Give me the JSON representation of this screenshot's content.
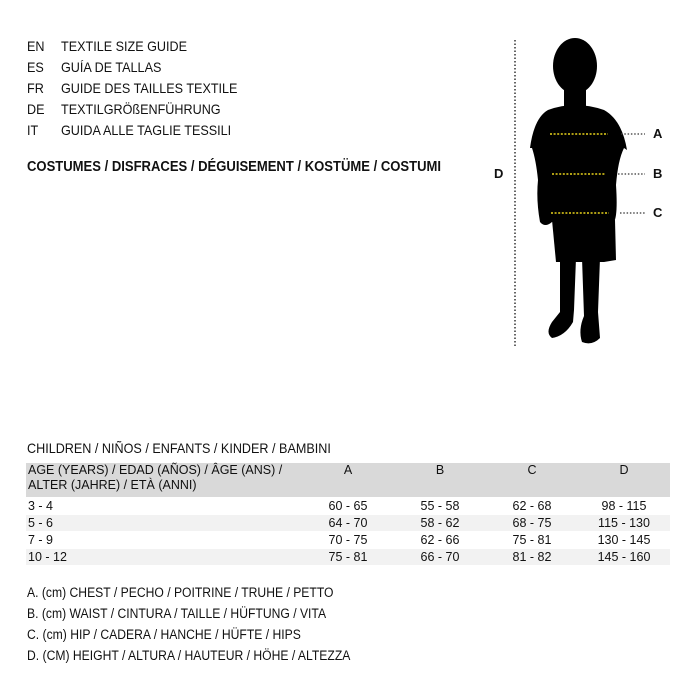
{
  "guide_titles": [
    {
      "code": "EN",
      "title": "TEXTILE SIZE GUIDE"
    },
    {
      "code": "ES",
      "title": "GUÍA DE TALLAS"
    },
    {
      "code": "FR",
      "title": "GUIDE DES TAILLES TEXTILE"
    },
    {
      "code": "DE",
      "title": "TEXTILGRÖßENFÜHRUNG"
    },
    {
      "code": "IT",
      "title": "GUIDA ALLE TAGLIE TESSILI"
    }
  ],
  "category": "COSTUMES / DISFRACES / DÉGUISEMENT / KOSTÜME / COSTUMI",
  "figure": {
    "labels": {
      "a": "A",
      "b": "B",
      "c": "C",
      "d": "D"
    },
    "measure_line_color": "#e8d21a"
  },
  "table": {
    "caption": "CHILDREN / NIÑOS / ENFANTS / KINDER / BAMBINI",
    "header": {
      "age_line1": "AGE (YEARS) / EDAD (AÑOS) / ÂGE (ANS) /",
      "age_line2": "ALTER (JAHRE) / ETÀ (ANNI)",
      "a": "A",
      "b": "B",
      "c": "C",
      "d": "D"
    },
    "rows": [
      {
        "age": "3 - 4",
        "a": "60 - 65",
        "b": "55 - 58",
        "c": "62 - 68",
        "d": "98 - 115"
      },
      {
        "age": "5 - 6",
        "a": "64 - 70",
        "b": "58 - 62",
        "c": "68 - 75",
        "d": "115 - 130"
      },
      {
        "age": "7 - 9",
        "a": "70 - 75",
        "b": "62 - 66",
        "c": "75 - 81",
        "d": "130 - 145"
      },
      {
        "age": "10 - 12",
        "a": "75 - 81",
        "b": "66 - 70",
        "c": "81 - 82",
        "d": "145 - 160"
      }
    ]
  },
  "legend": [
    "A. (cm) CHEST / PECHO / POITRINE / TRUHE / PETTO",
    "B. (cm) WAIST / CINTURA / TAILLE / HÜFTUNG / VITA",
    "C. (cm) HIP / CADERA / HANCHE / HÜFTE / HIPS",
    "D. (CM) HEIGHT / ALTURA / HAUTEUR / HÖHE / ALTEZZA"
  ]
}
